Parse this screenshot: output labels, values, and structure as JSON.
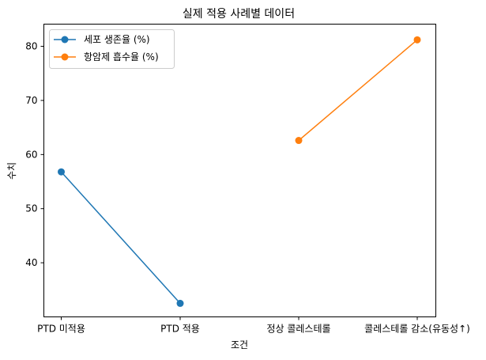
{
  "chart_data": {
    "type": "line",
    "title": "실제 적용 사례별 데이터",
    "xlabel": "조건",
    "ylabel": "수치",
    "categories": [
      "PTD 미적용",
      "PTD 적용",
      "정상 콜레스테롤",
      "콜레스테롤 감소(유동성↑)"
    ],
    "ylim": [
      30.0,
      84.1
    ],
    "yticks": [
      40,
      50,
      60,
      70,
      80
    ],
    "grid": false,
    "legend": "top-left",
    "series": [
      {
        "name": "세포 생존율 (%)",
        "color": "#1f77b4",
        "points": [
          [
            0,
            56.8
          ],
          [
            1,
            32.5
          ]
        ]
      },
      {
        "name": "항암제 흡수율 (%)",
        "color": "#ff7f0e",
        "points": [
          [
            2,
            62.6
          ],
          [
            3,
            81.2
          ]
        ]
      }
    ]
  }
}
